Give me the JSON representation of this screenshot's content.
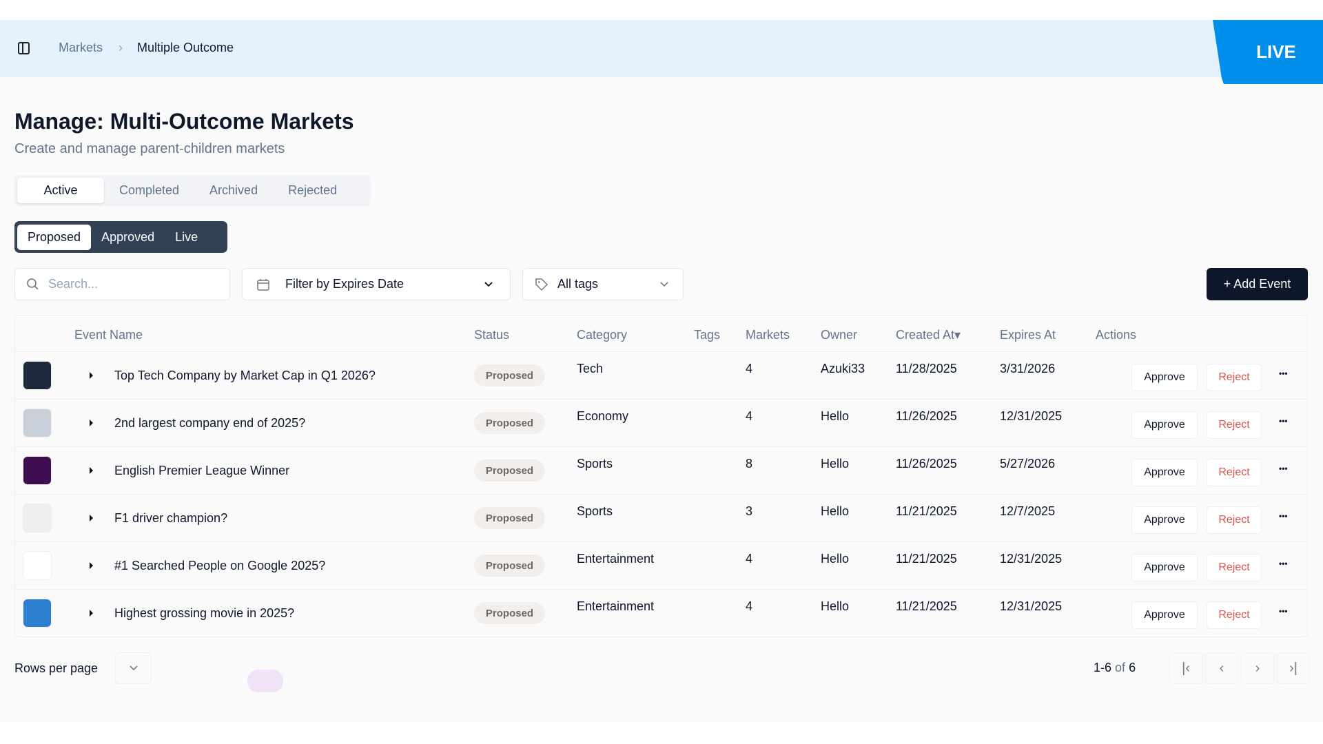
{
  "breadcrumb": {
    "parent": "Markets",
    "separator": "›",
    "current": "Multiple Outcome"
  },
  "live_badge": "LIVE",
  "page": {
    "title": "Manage: Multi-Outcome Markets",
    "subtitle": "Create and manage parent-children markets"
  },
  "tabs": [
    {
      "label": "Active",
      "active": true
    },
    {
      "label": "Completed"
    },
    {
      "label": "Archived"
    },
    {
      "label": "Rejected"
    }
  ],
  "subtabs": [
    {
      "label": "Proposed",
      "active": true
    },
    {
      "label": "Approved"
    },
    {
      "label": "Live"
    }
  ],
  "filters": {
    "search_placeholder": "Search...",
    "date_filter": "Filter by Expires Date",
    "tags_filter": "All tags"
  },
  "add_event": "+ Add Event",
  "columns": [
    "Event Name",
    "Status",
    "Category",
    "Tags",
    "Markets",
    "Owner",
    "Created At▾",
    "Expires At",
    "Actions"
  ],
  "rows": [
    {
      "name": "Top Tech Company by Market Cap in Q1 2026?",
      "status": "Proposed",
      "category": "Tech",
      "tags": "",
      "markets": "4",
      "owner": "Azuki33",
      "created": "11/28/2025",
      "expires": "3/31/2026",
      "thumb": "#1e293b"
    },
    {
      "name": "2nd largest company end of 2025?",
      "status": "Proposed",
      "category": "Economy",
      "tags": "",
      "markets": "4",
      "owner": "Hello",
      "created": "11/26/2025",
      "expires": "12/31/2025",
      "thumb": "#c9cfd8"
    },
    {
      "name": "English Premier League Winner",
      "status": "Proposed",
      "category": "Sports",
      "tags": "",
      "markets": "8",
      "owner": "Hello",
      "created": "11/26/2025",
      "expires": "5/27/2026",
      "thumb": "#3d0d4f"
    },
    {
      "name": "F1 driver champion?",
      "status": "Proposed",
      "category": "Sports",
      "tags": "",
      "markets": "3",
      "owner": "Hello",
      "created": "11/21/2025",
      "expires": "12/7/2025",
      "thumb": "#eeeeee"
    },
    {
      "name": "#1 Searched People on Google 2025?",
      "status": "Proposed",
      "category": "Entertainment",
      "tags": "",
      "markets": "4",
      "owner": "Hello",
      "created": "11/21/2025",
      "expires": "12/31/2025",
      "thumb": "#ffffff"
    },
    {
      "name": "Highest grossing movie in 2025?",
      "status": "Proposed",
      "category": "Entertainment",
      "tags": "",
      "markets": "4",
      "owner": "Hello",
      "created": "11/21/2025",
      "expires": "12/31/2025",
      "thumb": "#2d7fd0"
    }
  ],
  "actions": {
    "approve": "Approve",
    "reject": "Reject",
    "more": "•••"
  },
  "footer": {
    "rows_per_page": "Rows per page",
    "range": "1-6",
    "of": "of",
    "total": "6",
    "first": "|‹",
    "prev": "‹",
    "next": "›",
    "last": "›|"
  },
  "colors": {
    "accent": "#0090ec",
    "reject": "#d9534f",
    "subtabs_bg": "#334155"
  }
}
